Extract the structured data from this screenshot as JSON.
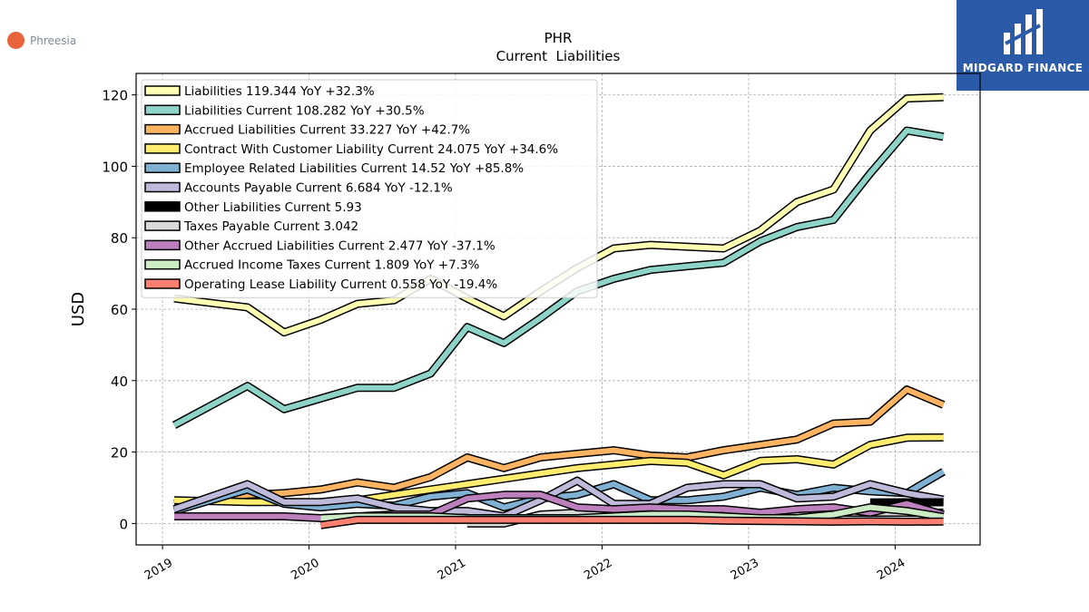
{
  "brand": {
    "name": "Phreesia"
  },
  "watermark": {
    "text": "MIDGARD FINANCE"
  },
  "chart_data": {
    "type": "line",
    "title": "PHR",
    "subtitle": "Current  Liabilities",
    "ylabel": "USD",
    "xlabel": "",
    "ylim": [
      -6,
      126
    ],
    "xlim": [
      2018.82,
      2024.58
    ],
    "yticks": [
      0,
      20,
      40,
      60,
      80,
      100,
      120
    ],
    "xticks": [
      {
        "label": "2019",
        "value": 2019.0
      },
      {
        "label": "2020",
        "value": 2020.0
      },
      {
        "label": "2021",
        "value": 2021.0
      },
      {
        "label": "2022",
        "value": 2022.0
      },
      {
        "label": "2023",
        "value": 2023.0
      },
      {
        "label": "2024",
        "value": 2024.0
      }
    ],
    "grid": true,
    "legend_position": "top-left",
    "series": [
      {
        "label": "Liabilities  119.344 YoY +32.3%",
        "color": "#ffffb3",
        "x": [
          2019.08,
          2019.58,
          2019.83,
          2020.08,
          2020.33,
          2020.58,
          2020.83,
          2021.08,
          2021.33,
          2021.58,
          2021.83,
          2022.08,
          2022.33,
          2022.58,
          2022.83,
          2023.08,
          2023.33,
          2023.58,
          2023.83,
          2024.08,
          2024.33
        ],
        "y": [
          63,
          60.5,
          53.5,
          57,
          61.5,
          62.5,
          68.5,
          63,
          58,
          65,
          71.5,
          77,
          78,
          77.5,
          77,
          82,
          90,
          93.5,
          110,
          119,
          119.344
        ]
      },
      {
        "label": "Liabilities Current  108.282 YoY +30.5%",
        "color": "#8dd3c7",
        "x": [
          2019.08,
          2019.58,
          2019.83,
          2020.08,
          2020.33,
          2020.58,
          2020.83,
          2021.08,
          2021.33,
          2021.58,
          2021.83,
          2022.08,
          2022.33,
          2022.58,
          2022.83,
          2023.08,
          2023.33,
          2023.58,
          2023.83,
          2024.08,
          2024.33
        ],
        "y": [
          27.5,
          38.5,
          32,
          35,
          38,
          38,
          42,
          55,
          50.5,
          57.5,
          65,
          68.5,
          71,
          72,
          73,
          79,
          83,
          85,
          98,
          110,
          108.282
        ]
      },
      {
        "label": "Accrued Liabilities Current  33.227 YoY +42.7%",
        "color": "#fdb462",
        "x": [
          2019.08,
          2019.58,
          2019.83,
          2020.08,
          2020.33,
          2020.58,
          2020.83,
          2021.08,
          2021.33,
          2021.58,
          2021.83,
          2022.08,
          2022.33,
          2022.58,
          2022.83,
          2023.08,
          2023.33,
          2023.58,
          2023.83,
          2024.08,
          2024.33
        ],
        "y": [
          5.5,
          8,
          8.5,
          9.5,
          11.5,
          10,
          13,
          18.5,
          15.5,
          18.5,
          19.5,
          20.5,
          19,
          18.5,
          20.5,
          22,
          23.5,
          28,
          28.5,
          37.5,
          33.227
        ]
      },
      {
        "label": "Contract With Customer Liability Current  24.075 YoY +34.6%",
        "color": "#ffed6f",
        "x": [
          2019.08,
          2019.58,
          2019.83,
          2020.08,
          2020.33,
          2020.58,
          2020.83,
          2021.08,
          2021.33,
          2021.58,
          2021.83,
          2022.08,
          2022.33,
          2022.58,
          2022.83,
          2023.08,
          2023.33,
          2023.58,
          2023.83,
          2024.08,
          2024.33
        ],
        "y": [
          6.5,
          6,
          6,
          5.5,
          6.5,
          8,
          9.5,
          11,
          12.5,
          14,
          15.5,
          16.5,
          17.5,
          17,
          13.5,
          17.5,
          18,
          16.5,
          22,
          24,
          24.075
        ]
      },
      {
        "label": "Employee Related Liabilities Current  14.52 YoY +85.8%",
        "color": "#80b1d3",
        "x": [
          2019.08,
          2019.58,
          2019.83,
          2020.08,
          2020.33,
          2020.58,
          2020.83,
          2021.08,
          2021.33,
          2021.58,
          2021.83,
          2022.08,
          2022.33,
          2022.58,
          2022.83,
          2023.08,
          2023.33,
          2023.58,
          2023.83,
          2024.08,
          2024.33
        ],
        "y": [
          3.5,
          9.5,
          5.5,
          4.5,
          5.5,
          5,
          7.5,
          8.5,
          4.5,
          7,
          8,
          11,
          6.5,
          6.5,
          7.5,
          10,
          8,
          10,
          9,
          8.5,
          14.52
        ]
      },
      {
        "label": "Accounts Payable Current  6.684 YoY -12.1%",
        "color": "#bebada",
        "x": [
          2019.08,
          2019.58,
          2019.83,
          2020.08,
          2020.33,
          2020.58,
          2020.83,
          2021.08,
          2021.33,
          2021.58,
          2021.83,
          2022.08,
          2022.33,
          2022.58,
          2022.83,
          2023.08,
          2023.33,
          2023.58,
          2023.83,
          2024.08,
          2024.33
        ],
        "y": [
          4,
          11,
          6,
          6,
          7,
          4.5,
          3.5,
          3.5,
          2,
          6.5,
          12,
          5.5,
          5.5,
          10,
          11,
          11,
          7,
          7.5,
          11,
          8.5,
          6.684
        ]
      },
      {
        "label": "Other Liabilities Current  5.93",
        "color": "#000000",
        "x": [
          2023.83,
          2024.08,
          2024.33
        ],
        "y": [
          5.9,
          5.93,
          5.93
        ]
      },
      {
        "label": "Taxes Payable Current  3.042",
        "color": "#d9d9d9",
        "x": [
          2021.08,
          2021.33,
          2021.58,
          2021.83,
          2022.08,
          2022.33,
          2022.58,
          2022.83,
          2023.08,
          2023.33,
          2023.58,
          2023.83,
          2024.08,
          2024.33
        ],
        "y": [
          0,
          0,
          2.5,
          3,
          3,
          3,
          3,
          3,
          3,
          3,
          3,
          3,
          3,
          3.042
        ]
      },
      {
        "label": "Other Accrued Liabilities Current  2.477 YoY -37.1%",
        "color": "#bc80bd",
        "x": [
          2019.08,
          2019.58,
          2019.83,
          2020.08,
          2020.33,
          2020.58,
          2020.83,
          2021.08,
          2021.33,
          2021.58,
          2021.83,
          2022.08,
          2022.33,
          2022.58,
          2022.83,
          2023.08,
          2023.33,
          2023.58,
          2023.83,
          2024.08,
          2024.33
        ],
        "y": [
          2,
          2,
          2,
          1.5,
          2,
          2.5,
          2.5,
          7,
          8,
          8,
          4.5,
          4,
          4.5,
          4,
          4,
          3,
          4,
          4.5,
          3,
          5.5,
          2.477
        ]
      },
      {
        "label": "Accrued Income Taxes Current  1.809 YoY +7.3%",
        "color": "#ccebc5",
        "x": [
          2020.08,
          2020.33,
          2020.58,
          2020.83,
          2021.08,
          2021.33,
          2021.58,
          2021.83,
          2022.08,
          2022.33,
          2022.58,
          2022.83,
          2023.08,
          2023.33,
          2023.58,
          2023.83,
          2024.08,
          2024.33
        ],
        "y": [
          1.5,
          2,
          2,
          2,
          1.5,
          1.5,
          1.5,
          1.5,
          2,
          2.5,
          2.5,
          2,
          1.5,
          1.5,
          2.5,
          4.5,
          3.5,
          1.809
        ]
      },
      {
        "label": "Operating Lease Liability Current  0.558 YoY -19.4%",
        "color": "#fb8072",
        "x": [
          2020.08,
          2020.33,
          2020.58,
          2020.83,
          2021.08,
          2021.33,
          2021.58,
          2021.83,
          2022.08,
          2022.33,
          2022.58,
          2022.83,
          2023.08,
          2023.33,
          2023.58,
          2023.83,
          2024.08,
          2024.33
        ],
        "y": [
          -0.5,
          1,
          1,
          1,
          1,
          1,
          1,
          1,
          1,
          1,
          1,
          0.8,
          0.7,
          0.6,
          0.5,
          0.6,
          0.5,
          0.558
        ]
      }
    ]
  }
}
